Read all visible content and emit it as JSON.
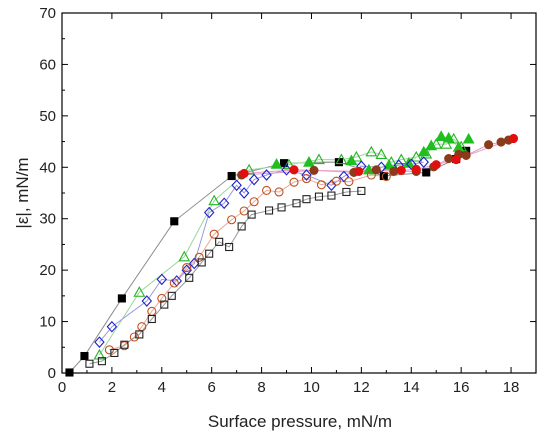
{
  "chart_data": {
    "type": "scatter",
    "xlabel": "Surface pressure, mN/m",
    "ylabel": "|ε|, mN/m",
    "xlim": [
      0,
      19
    ],
    "ylim": [
      0,
      70
    ],
    "xticks": [
      0,
      2,
      4,
      6,
      8,
      10,
      12,
      14,
      16,
      18
    ],
    "yticks": [
      0,
      10,
      20,
      30,
      40,
      50,
      60,
      70
    ],
    "grid": false,
    "legend": "none",
    "series": [
      {
        "marker": "square-filled",
        "color": "#000000",
        "line_color": "#8c8c8c",
        "points": [
          [
            0.3,
            0.1
          ],
          [
            0.9,
            3.3
          ],
          [
            2.4,
            14.5
          ],
          [
            4.5,
            29.5
          ],
          [
            6.8,
            38.3
          ],
          [
            8.9,
            40.8
          ],
          [
            11.1,
            41.0
          ],
          [
            12.9,
            38.3
          ],
          [
            14.6,
            39.0
          ],
          [
            15.8,
            41.6
          ],
          [
            16.2,
            43.2
          ]
        ]
      },
      {
        "marker": "triangle-open",
        "color": "#22b422",
        "line_color": "#9bd69b",
        "points": [
          [
            1.5,
            3.5
          ],
          [
            3.1,
            15.7
          ],
          [
            4.9,
            22.6
          ],
          [
            6.1,
            33.5
          ],
          [
            7.5,
            39.5
          ],
          [
            9.1,
            40.5
          ],
          [
            10.3,
            41.5
          ],
          [
            11.2,
            41.5
          ],
          [
            11.8,
            42.0
          ],
          [
            12.4,
            43.0
          ],
          [
            12.8,
            42.5
          ],
          [
            13.2,
            41.0
          ],
          [
            13.6,
            41.5
          ],
          [
            14.2,
            42.0
          ],
          [
            14.6,
            42.6
          ],
          [
            15.0,
            44.5
          ],
          [
            15.4,
            44.5
          ],
          [
            15.7,
            45.5
          ],
          [
            16.0,
            44.0
          ]
        ]
      },
      {
        "marker": "triangle-filled",
        "color": "#1fbf1f",
        "line_color": "#b5e8b5",
        "points": [
          [
            8.6,
            40.6
          ],
          [
            9.9,
            41.0
          ],
          [
            11.6,
            41.3
          ],
          [
            12.3,
            39.5
          ],
          [
            13.1,
            40.4
          ],
          [
            13.9,
            40.8
          ],
          [
            14.5,
            43.0
          ],
          [
            14.8,
            44.2
          ],
          [
            15.2,
            46.0
          ],
          [
            15.5,
            45.7
          ],
          [
            15.9,
            43.9
          ],
          [
            16.3,
            45.5
          ]
        ]
      },
      {
        "marker": "diamond-open",
        "color": "#2020cc",
        "line_color": "#9b9bdc",
        "points": [
          [
            1.5,
            6.0
          ],
          [
            2.0,
            9.0
          ],
          [
            3.4,
            14.0
          ],
          [
            4.0,
            18.2
          ],
          [
            4.6,
            17.9
          ],
          [
            5.0,
            20.0
          ],
          [
            5.3,
            21.3
          ],
          [
            5.9,
            31.2
          ],
          [
            6.5,
            33.0
          ],
          [
            7.0,
            36.5
          ],
          [
            7.3,
            35.0
          ],
          [
            7.7,
            37.6
          ],
          [
            8.2,
            38.5
          ],
          [
            9.0,
            39.5
          ],
          [
            9.8,
            38.5
          ],
          [
            10.8,
            36.5
          ],
          [
            11.3,
            38.2
          ],
          [
            12.0,
            40.2
          ],
          [
            12.8,
            40.0
          ],
          [
            13.5,
            40.4
          ],
          [
            14.0,
            40.6
          ],
          [
            14.5,
            41.0
          ]
        ]
      },
      {
        "marker": "circle-open",
        "color": "#c0501e",
        "line_color": "#e8a898",
        "points": [
          [
            1.9,
            4.5
          ],
          [
            2.5,
            5.3
          ],
          [
            2.9,
            7.0
          ],
          [
            3.2,
            9.0
          ],
          [
            3.6,
            12.0
          ],
          [
            4.0,
            14.5
          ],
          [
            4.5,
            17.5
          ],
          [
            5.0,
            20.5
          ],
          [
            5.5,
            22.5
          ],
          [
            6.1,
            27.0
          ],
          [
            6.8,
            29.8
          ],
          [
            7.3,
            31.5
          ],
          [
            7.7,
            33.3
          ],
          [
            8.2,
            35.5
          ],
          [
            8.7,
            35.2
          ],
          [
            9.3,
            37.1
          ],
          [
            9.8,
            37.8
          ],
          [
            10.4,
            36.6
          ],
          [
            11.0,
            37.3
          ],
          [
            11.5,
            37.2
          ],
          [
            12.4,
            38.5
          ],
          [
            13.0,
            38.2
          ]
        ]
      },
      {
        "marker": "circle-filled",
        "color": "#8b3a1a",
        "line_color": "#d9a0d0",
        "points": [
          [
            7.2,
            38.5
          ],
          [
            10.1,
            39.4
          ],
          [
            11.7,
            39.0
          ],
          [
            12.6,
            39.5
          ],
          [
            13.3,
            39.2
          ],
          [
            14.2,
            39.2
          ],
          [
            14.9,
            40.1
          ],
          [
            15.5,
            41.7
          ],
          [
            15.9,
            42.5
          ],
          [
            16.2,
            42.3
          ],
          [
            17.1,
            44.4
          ],
          [
            17.6,
            44.9
          ],
          [
            17.9,
            45.3
          ]
        ]
      },
      {
        "marker": "circle-filled",
        "color": "#e01010",
        "line_color": "#e8a0c8",
        "points": [
          [
            7.3,
            38.8
          ],
          [
            9.3,
            39.5
          ],
          [
            11.9,
            39.2
          ],
          [
            13.6,
            39.4
          ],
          [
            14.2,
            39.6
          ],
          [
            15.0,
            40.5
          ],
          [
            15.8,
            41.5
          ],
          [
            18.1,
            45.6
          ]
        ]
      },
      {
        "marker": "square-open",
        "color": "#222222",
        "line_color": "#9a9a9a",
        "points": [
          [
            1.1,
            1.8
          ],
          [
            1.6,
            2.3
          ],
          [
            2.1,
            3.9
          ],
          [
            2.5,
            5.5
          ],
          [
            3.1,
            7.5
          ],
          [
            3.6,
            10.5
          ],
          [
            4.1,
            13.3
          ],
          [
            4.4,
            15.0
          ],
          [
            5.1,
            18.5
          ],
          [
            5.6,
            21.5
          ],
          [
            5.9,
            23.2
          ],
          [
            6.3,
            25.5
          ],
          [
            6.7,
            24.5
          ],
          [
            7.2,
            28.5
          ],
          [
            7.6,
            30.8
          ],
          [
            8.3,
            31.6
          ],
          [
            8.8,
            32.2
          ],
          [
            9.4,
            33.0
          ],
          [
            9.8,
            33.8
          ],
          [
            10.3,
            34.3
          ],
          [
            10.8,
            34.5
          ],
          [
            11.4,
            35.2
          ],
          [
            12.0,
            35.4
          ]
        ]
      }
    ]
  }
}
